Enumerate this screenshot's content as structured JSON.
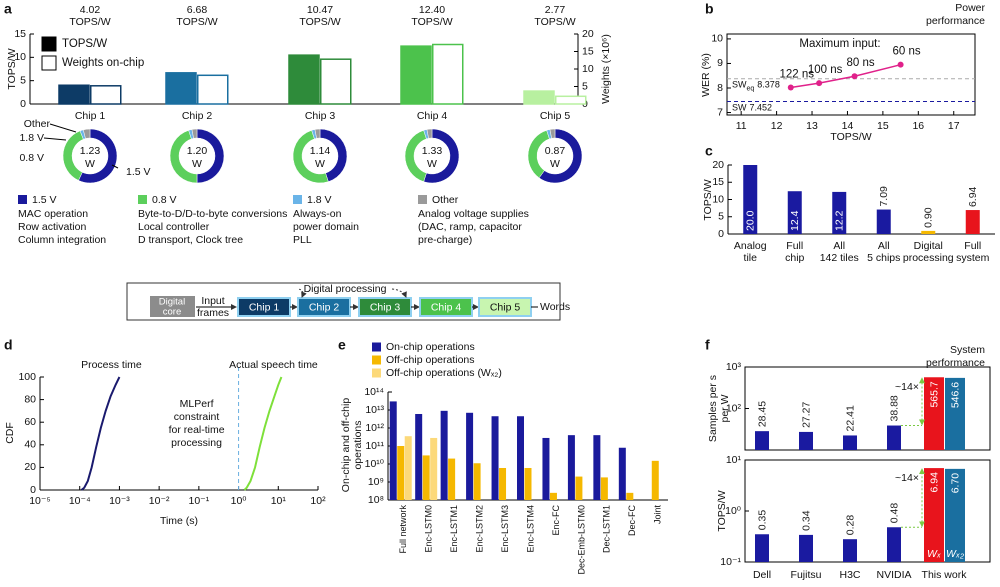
{
  "section_titles": [
    [
      "Power",
      "performance"
    ],
    [
      "System",
      "performance"
    ]
  ],
  "diagram": {
    "digital_core": [
      "Digital",
      "core"
    ],
    "input_label": [
      "Input",
      "frames"
    ],
    "chips": [
      "Chip 1",
      "Chip 2",
      "Chip 3",
      "Chip 4",
      "Chip 5"
    ],
    "feedback_label": "Digital processing",
    "output_label": "Words"
  },
  "chart_data": [
    {
      "panel": "a",
      "type": "bar",
      "ylabel": "TOPS/W",
      "y2label": "Weights (×10⁶)",
      "categories": [
        "Chip 1",
        "Chip 2",
        "Chip 3",
        "Chip 4",
        "Chip 5"
      ],
      "value_label_unit": "TOPS/W",
      "ylim": [
        0,
        15
      ],
      "yticks": [
        0,
        5,
        10,
        15
      ],
      "y2lim": [
        0,
        20
      ],
      "y2ticks": [
        0,
        5,
        10,
        15,
        20
      ],
      "legend": "upper left",
      "series": [
        {
          "name": "TOPS/W",
          "color": "#000000",
          "colors": [
            "#0d3b66",
            "#1a6fa0",
            "#2e8b3a",
            "#4cc24c",
            "#b8f0a0"
          ],
          "values": [
            4.02,
            6.68,
            10.47,
            12.4,
            2.77
          ],
          "value_labels": [
            "4.02",
            "6.68",
            "10.47",
            "12.40",
            "2.77"
          ]
        },
        {
          "name": "Weights on-chip",
          "color": "#ffffff",
          "colors": [
            "#0d3b66",
            "#1a6fa0",
            "#2e8b3a",
            "#4cc24c",
            "#b8f0a0"
          ],
          "axis": "y2",
          "values": [
            5.2,
            8.2,
            12.8,
            17.0,
            2.2
          ]
        }
      ]
    },
    {
      "type": "donut",
      "categories": [
        "1.5 V",
        "0.8 V",
        "1.8 V",
        "Other"
      ],
      "colors": [
        "#1a1a9c",
        "#5ccf5c",
        "#6ab4e8",
        "#9a9a9a"
      ],
      "descriptions": [
        [
          "MAC operation",
          "Row activation",
          "Column integration"
        ],
        [
          "Byte-to-D/D-to-byte conversions",
          "Local controller",
          "D transport, Clock tree"
        ],
        [
          "Always-on",
          "power domain",
          "PLL"
        ],
        [
          "Analog voltage supplies",
          "(DAC, ramp, capacitor",
          "pre-charge)"
        ]
      ],
      "total_unit": "W",
      "series": [
        {
          "values": [
            57,
            37,
            2,
            4
          ],
          "total": 1.23
        },
        {
          "values": [
            50,
            45,
            2,
            3
          ],
          "total": 1.2,
          "total_label": "1.20"
        },
        {
          "values": [
            45,
            50,
            2,
            3
          ],
          "total": 1.14
        },
        {
          "values": [
            55,
            40,
            2,
            3
          ],
          "total": 1.33
        },
        {
          "values": [
            60,
            35,
            2,
            3
          ],
          "total": 0.87
        }
      ]
    },
    {
      "panel": "b",
      "type": "line",
      "xlabel": "TOPS/W",
      "ylabel": "WER (%)",
      "annotation": "Maximum input:",
      "xlim": [
        10.6,
        17.6
      ],
      "xticks": [
        11,
        12,
        13,
        14,
        15,
        16,
        17
      ],
      "ylim": [
        6.9,
        10.2
      ],
      "yticks": [
        7,
        8,
        9,
        10
      ],
      "series": [
        {
          "color": "#e0218a",
          "x": [
            12.4,
            13.2,
            14.2,
            15.5
          ],
          "values": [
            8.02,
            8.2,
            8.48,
            8.95
          ],
          "point_labels": [
            "122 ns",
            "100 ns",
            "80 ns",
            "60 ns"
          ]
        }
      ],
      "reference_lines": [
        {
          "label": "SW",
          "subscript": "eq",
          "value": 8.378,
          "color": "#aaaaaa"
        },
        {
          "label": "SW",
          "value": 7.452,
          "color": "#1a1aa0"
        }
      ]
    },
    {
      "panel": "c",
      "type": "bar",
      "ylabel": "TOPS/W",
      "categories": [
        [
          "Analog",
          "tile"
        ],
        [
          "Full",
          "chip"
        ],
        [
          "All",
          "142 tiles"
        ],
        [
          "All",
          "5 chips"
        ],
        [
          "Digital",
          "processing"
        ],
        [
          "Full",
          "system"
        ]
      ],
      "values": [
        20.0,
        12.4,
        12.2,
        7.09,
        0.9,
        6.94
      ],
      "value_labels": [
        "20.0",
        "12.4",
        "12.2",
        "7.09",
        "0.90",
        "6.94"
      ],
      "colors": [
        "#1a1aa0",
        "#1a1aa0",
        "#1a1aa0",
        "#1a1aa0",
        "#f5b800",
        "#e8141c"
      ],
      "ylim": [
        0,
        20
      ],
      "yticks": [
        0,
        5,
        10,
        15,
        20
      ]
    },
    {
      "panel": "d",
      "type": "line",
      "xlabel": "Time (s)",
      "ylabel": "CDF",
      "xscale": "log",
      "xlim": [
        1e-05,
        100
      ],
      "xticks": [
        {
          "value": 1e-05,
          "label": "10⁻⁵"
        },
        {
          "value": 0.0001,
          "label": "10⁻⁴"
        },
        {
          "value": 0.001,
          "label": "10⁻³"
        },
        {
          "value": 0.01,
          "label": "10⁻²"
        },
        {
          "value": 0.1,
          "label": "10⁻¹"
        },
        {
          "value": 1,
          "label": "10⁰"
        },
        {
          "value": 10,
          "label": "10¹"
        },
        {
          "value": 100,
          "label": "10²"
        }
      ],
      "ylim": [
        0,
        100
      ],
      "yticks": [
        0,
        20,
        40,
        60,
        80,
        100
      ],
      "series": [
        {
          "name": "Process time",
          "color": "#1a1a6e",
          "x": [
            0.00011,
            0.00013,
            0.00016,
            0.0002,
            0.00026,
            0.00034,
            0.00045,
            0.0006,
            0.0008,
            0.001
          ],
          "values": [
            0,
            2,
            8,
            20,
            38,
            55,
            70,
            83,
            93,
            100
          ]
        },
        {
          "name": "Actual speech time",
          "color": "#7ee03a",
          "x": [
            1.4,
            1.6,
            2,
            2.6,
            3.4,
            4.5,
            6,
            8,
            10,
            12
          ],
          "values": [
            0,
            2,
            8,
            20,
            38,
            55,
            70,
            83,
            93,
            100
          ]
        }
      ],
      "reference_lines": [
        {
          "axis": "x",
          "value": 1,
          "label": [
            "MLPerf",
            "constraint",
            "for real-time",
            "processing"
          ],
          "color": "#6aaee0"
        }
      ]
    },
    {
      "panel": "e",
      "type": "bar",
      "ylabel": [
        "On-chip and off-chip",
        "operations"
      ],
      "yscale": "log",
      "legend": "upper left",
      "ylim": [
        100000000.0,
        100000000000000.0
      ],
      "yticks": [
        {
          "value": 100000000.0,
          "label": "10⁸"
        },
        {
          "value": 1000000000.0,
          "label": "10⁹"
        },
        {
          "value": 10000000000.0,
          "label": "10¹⁰"
        },
        {
          "value": 100000000000.0,
          "label": "10¹¹"
        },
        {
          "value": 1000000000000.0,
          "label": "10¹²"
        },
        {
          "value": 10000000000000.0,
          "label": "10¹³"
        },
        {
          "value": 100000000000000.0,
          "label": "10¹⁴"
        }
      ],
      "categories": [
        "Full network",
        "Enc-LSTM0",
        "Enc-LSTM1",
        "Enc-LSTM2",
        "Enc-LSTM3",
        "Enc-LSTM4",
        "Enc-FC",
        "Dec-Emb-LSTM0",
        "Dec-LSTM1",
        "Dec-FC",
        "Joint"
      ],
      "series": [
        {
          "name": "On-chip operations",
          "color": "#1a1a9c",
          "values": [
            30000000000000.0,
            6000000000000.0,
            9000000000000.0,
            7000000000000.0,
            4500000000000.0,
            4500000000000.0,
            280000000000.0,
            400000000000.0,
            400000000000.0,
            80000000000.0,
            null
          ]
        },
        {
          "name": "Off-chip operations",
          "color": "#f5b800",
          "values": [
            100000000000.0,
            30000000000.0,
            20000000000.0,
            11000000000.0,
            6000000000.0,
            6000000000.0,
            250000000.0,
            2000000000.0,
            1800000000.0,
            250000000.0,
            15000000000.0
          ]
        },
        {
          "name": "Off-chip operations (Wₓ₂)",
          "color": "#fcd97a",
          "values": [
            350000000000.0,
            280000000000.0,
            null,
            null,
            null,
            null,
            null,
            null,
            null,
            null,
            null
          ]
        }
      ]
    },
    {
      "panel": "f",
      "type": "bar",
      "ylabel": [
        "Samples per s",
        "per W"
      ],
      "yscale": "log",
      "annotation": "~14×",
      "ylim": [
        10,
        1000
      ],
      "yticks": [
        {
          "value": 100,
          "label": "10²"
        },
        {
          "value": 1000,
          "label": "10³"
        }
      ],
      "series": [
        {
          "colors": [
            "#1a1aa0",
            "#1a1aa0",
            "#1a1aa0",
            "#1a1aa0",
            "#e8141c"
          ],
          "values": [
            28.45,
            27.27,
            22.41,
            38.88,
            565.7
          ]
        },
        {
          "colors": [
            "#1a6fa0",
            "#1a6fa0",
            "#1a6fa0",
            "#1a6fa0",
            "#1a6fa0"
          ],
          "values": [
            null,
            null,
            null,
            null,
            546.6
          ]
        }
      ]
    },
    {
      "type": "bar",
      "ylabel": "TOPS/W",
      "yscale": "log",
      "annotation": "~14×",
      "categories": [
        "Dell",
        "Fujitsu",
        "H3C",
        "NVIDIA",
        "This work"
      ],
      "ylim": [
        0.1,
        10
      ],
      "yticks": [
        {
          "value": 0.1,
          "label": "10⁻¹"
        },
        {
          "value": 1,
          "label": "10⁰"
        },
        {
          "value": 10,
          "label": "10¹"
        }
      ],
      "series": [
        {
          "name": "Wₓ",
          "colors": [
            "#1a1aa0",
            "#1a1aa0",
            "#1a1aa0",
            "#1a1aa0",
            "#e8141c"
          ],
          "values": [
            0.35,
            0.34,
            0.28,
            0.48,
            6.94
          ]
        },
        {
          "name": "Wₓ₂",
          "colors": [
            "#1a6fa0",
            "#1a6fa0",
            "#1a6fa0",
            "#1a6fa0",
            "#1a6fa0"
          ],
          "values": [
            null,
            null,
            null,
            null,
            6.7
          ],
          "value_labels": [
            null,
            null,
            null,
            null,
            "6.70"
          ]
        }
      ]
    }
  ]
}
